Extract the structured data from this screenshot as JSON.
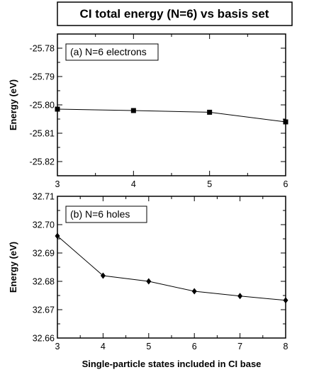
{
  "figure": {
    "title": "CI total energy (N=6) vs basis set"
  },
  "chart_data": [
    {
      "type": "line",
      "panel_label": "(a) N=6 electrons",
      "xlabel": "",
      "ylabel": "Energy (eV)",
      "x": [
        3,
        4,
        5,
        6
      ],
      "xlim": [
        3,
        6
      ],
      "xticks": [
        3,
        4,
        5,
        6
      ],
      "ylim": [
        -25.825,
        -25.775
      ],
      "yticks": [
        -25.82,
        -25.81,
        -25.8,
        -25.79,
        -25.78
      ],
      "ytick_labels": [
        "-25.82",
        "-25.81",
        "-25.80",
        "-25.79",
        "-25.78"
      ],
      "series": [
        {
          "marker": "square",
          "color": "#000000",
          "values": [
            -25.8015,
            -25.802,
            -25.8026,
            -25.806
          ]
        }
      ],
      "grid": false,
      "legend": "none"
    },
    {
      "type": "line",
      "panel_label": "(b) N=6 holes",
      "xlabel": "Single-particle states included in CI base",
      "ylabel": "Energy (eV)",
      "x": [
        3,
        4,
        5,
        6,
        7,
        8
      ],
      "xlim": [
        3,
        8
      ],
      "xticks": [
        3,
        4,
        5,
        6,
        7,
        8
      ],
      "ylim": [
        32.66,
        32.71
      ],
      "yticks": [
        32.66,
        32.67,
        32.68,
        32.69,
        32.7,
        32.71
      ],
      "ytick_labels": [
        "32.66",
        "32.67",
        "32.68",
        "32.69",
        "32.70",
        "32.71"
      ],
      "series": [
        {
          "marker": "diamond",
          "color": "#000000",
          "values": [
            32.696,
            32.682,
            32.68,
            32.6765,
            32.6748,
            32.6733
          ]
        }
      ],
      "grid": false,
      "legend": "none"
    }
  ]
}
